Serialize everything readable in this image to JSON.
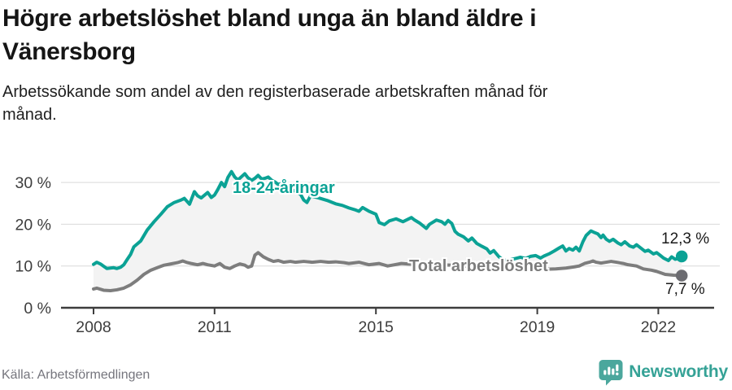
{
  "header": {
    "title_lines": [
      "Högre arbetslöshet bland unga än bland äldre i",
      "Vänersborg"
    ],
    "subtitle_lines": [
      "Arbetssökande som andel av den registerbaserade arbetskraften månad för",
      "månad."
    ]
  },
  "footer": {
    "source": "Källa: Arbetsförmedlingen",
    "brand": "Newsworthy"
  },
  "colors": {
    "accent_teal": "#0ba295",
    "line_gray": "#7d7d7d",
    "dot_gray": "#6c6c71",
    "axis": "#3d3d3d",
    "grid": "#d9d9d9",
    "fill_between": "#f3f3f3",
    "badge_teal": "#4ba79d",
    "brand_text": "#35a296"
  },
  "chart_data": {
    "type": "line",
    "title": "Högre arbetslöshet bland unga än bland äldre i Vänersborg",
    "subtitle": "Arbetssökande som andel av den registerbaserade arbetskraften månad för månad.",
    "unit": "%",
    "legend_position": "inline-labels",
    "x_axis": {
      "ticks": [
        2008,
        2011,
        2015,
        2019,
        2022
      ],
      "range": [
        2008,
        2022.7
      ],
      "label": ""
    },
    "y_axis": {
      "values": [
        0,
        10,
        20,
        30
      ],
      "tick_labels": [
        "0 %",
        "10 %",
        "20 %",
        "30 %"
      ],
      "range": [
        0,
        33
      ],
      "grid": true,
      "label": ""
    },
    "fill_between_series": true,
    "series": [
      {
        "name": "18-24-åringar",
        "color": "#0ba295",
        "dot_color": "#0ba295",
        "end_label": "12,3 %",
        "end_value": 12.3,
        "points": [
          [
            2008.0,
            10.4
          ],
          [
            2008.08,
            10.9
          ],
          [
            2008.17,
            10.5
          ],
          [
            2008.33,
            9.4
          ],
          [
            2008.5,
            9.6
          ],
          [
            2008.58,
            9.4
          ],
          [
            2008.67,
            9.7
          ],
          [
            2008.75,
            10.3
          ],
          [
            2008.83,
            11.5
          ],
          [
            2008.92,
            12.8
          ],
          [
            2009.0,
            14.6
          ],
          [
            2009.17,
            16.0
          ],
          [
            2009.33,
            18.6
          ],
          [
            2009.5,
            20.6
          ],
          [
            2009.67,
            22.4
          ],
          [
            2009.83,
            24.2
          ],
          [
            2010.0,
            25.2
          ],
          [
            2010.17,
            25.8
          ],
          [
            2010.25,
            26.2
          ],
          [
            2010.38,
            24.8
          ],
          [
            2010.5,
            27.8
          ],
          [
            2010.58,
            26.8
          ],
          [
            2010.67,
            26.3
          ],
          [
            2010.83,
            27.6
          ],
          [
            2010.92,
            26.4
          ],
          [
            2011.0,
            27.0
          ],
          [
            2011.08,
            28.3
          ],
          [
            2011.17,
            30.0
          ],
          [
            2011.25,
            29.0
          ],
          [
            2011.33,
            31.2
          ],
          [
            2011.42,
            32.6
          ],
          [
            2011.5,
            31.3
          ],
          [
            2011.58,
            30.6
          ],
          [
            2011.67,
            31.4
          ],
          [
            2011.75,
            32.1
          ],
          [
            2011.83,
            31.1
          ],
          [
            2011.92,
            30.5
          ],
          [
            2012.0,
            31.0
          ],
          [
            2012.08,
            31.7
          ],
          [
            2012.17,
            30.8
          ],
          [
            2012.25,
            31.0
          ],
          [
            2012.33,
            31.3
          ],
          [
            2012.42,
            30.5
          ],
          [
            2012.5,
            30.1
          ],
          [
            2012.58,
            29.5
          ],
          [
            2012.67,
            29.8
          ],
          [
            2012.75,
            29.4
          ],
          [
            2012.83,
            28.8
          ],
          [
            2012.92,
            28.3
          ],
          [
            2013.0,
            27.9
          ],
          [
            2013.13,
            27.2
          ],
          [
            2013.21,
            25.8
          ],
          [
            2013.29,
            25.2
          ],
          [
            2013.38,
            26.8
          ],
          [
            2013.58,
            26.3
          ],
          [
            2013.79,
            25.7
          ],
          [
            2014.0,
            24.9
          ],
          [
            2014.17,
            24.5
          ],
          [
            2014.33,
            23.9
          ],
          [
            2014.5,
            23.4
          ],
          [
            2014.58,
            23.1
          ],
          [
            2014.67,
            24.0
          ],
          [
            2014.83,
            23.1
          ],
          [
            2015.0,
            22.4
          ],
          [
            2015.08,
            20.4
          ],
          [
            2015.21,
            19.9
          ],
          [
            2015.33,
            20.8
          ],
          [
            2015.5,
            21.3
          ],
          [
            2015.67,
            20.6
          ],
          [
            2015.88,
            21.6
          ],
          [
            2015.96,
            21.0
          ],
          [
            2016.08,
            20.3
          ],
          [
            2016.25,
            19.0
          ],
          [
            2016.33,
            20.0
          ],
          [
            2016.5,
            21.0
          ],
          [
            2016.63,
            20.6
          ],
          [
            2016.71,
            20.0
          ],
          [
            2016.79,
            20.9
          ],
          [
            2016.88,
            20.2
          ],
          [
            2016.96,
            18.3
          ],
          [
            2017.04,
            17.6
          ],
          [
            2017.17,
            17.0
          ],
          [
            2017.29,
            16.0
          ],
          [
            2017.38,
            16.7
          ],
          [
            2017.5,
            15.4
          ],
          [
            2017.63,
            14.7
          ],
          [
            2017.75,
            14.1
          ],
          [
            2017.83,
            13.1
          ],
          [
            2017.92,
            13.7
          ],
          [
            2018.04,
            12.3
          ],
          [
            2018.13,
            11.6
          ],
          [
            2018.25,
            11.3
          ],
          [
            2018.42,
            11.7
          ],
          [
            2018.58,
            12.1
          ],
          [
            2018.71,
            11.8
          ],
          [
            2018.83,
            12.3
          ],
          [
            2018.96,
            12.5
          ],
          [
            2019.08,
            11.9
          ],
          [
            2019.17,
            12.4
          ],
          [
            2019.29,
            12.9
          ],
          [
            2019.42,
            13.6
          ],
          [
            2019.54,
            14.3
          ],
          [
            2019.63,
            14.8
          ],
          [
            2019.71,
            13.6
          ],
          [
            2019.79,
            14.2
          ],
          [
            2019.88,
            13.8
          ],
          [
            2019.96,
            14.5
          ],
          [
            2020.04,
            13.6
          ],
          [
            2020.13,
            15.8
          ],
          [
            2020.21,
            17.3
          ],
          [
            2020.33,
            18.4
          ],
          [
            2020.42,
            18.0
          ],
          [
            2020.5,
            17.7
          ],
          [
            2020.58,
            16.8
          ],
          [
            2020.63,
            17.4
          ],
          [
            2020.71,
            16.4
          ],
          [
            2020.79,
            15.9
          ],
          [
            2020.88,
            16.4
          ],
          [
            2021.0,
            15.5
          ],
          [
            2021.08,
            15.1
          ],
          [
            2021.17,
            15.8
          ],
          [
            2021.29,
            14.8
          ],
          [
            2021.38,
            14.5
          ],
          [
            2021.46,
            15.1
          ],
          [
            2021.58,
            14.2
          ],
          [
            2021.67,
            13.5
          ],
          [
            2021.75,
            13.8
          ],
          [
            2021.88,
            12.9
          ],
          [
            2021.96,
            13.2
          ],
          [
            2022.04,
            12.6
          ],
          [
            2022.13,
            11.9
          ],
          [
            2022.25,
            11.3
          ],
          [
            2022.33,
            12.2
          ],
          [
            2022.42,
            11.6
          ],
          [
            2022.5,
            11.8
          ],
          [
            2022.58,
            12.3
          ]
        ]
      },
      {
        "name": "Total arbetslöshet",
        "color": "#7d7d7d",
        "dot_color": "#6c6c71",
        "end_label": "7,7 %",
        "end_value": 7.7,
        "points": [
          [
            2008.0,
            4.5
          ],
          [
            2008.08,
            4.7
          ],
          [
            2008.25,
            4.2
          ],
          [
            2008.42,
            4.1
          ],
          [
            2008.58,
            4.3
          ],
          [
            2008.75,
            4.7
          ],
          [
            2008.92,
            5.5
          ],
          [
            2009.08,
            6.6
          ],
          [
            2009.25,
            8.0
          ],
          [
            2009.42,
            9.0
          ],
          [
            2009.58,
            9.6
          ],
          [
            2009.75,
            10.2
          ],
          [
            2009.92,
            10.5
          ],
          [
            2010.08,
            10.8
          ],
          [
            2010.21,
            11.2
          ],
          [
            2010.33,
            10.8
          ],
          [
            2010.42,
            10.6
          ],
          [
            2010.58,
            10.3
          ],
          [
            2010.71,
            10.6
          ],
          [
            2010.83,
            10.3
          ],
          [
            2011.0,
            10.0
          ],
          [
            2011.13,
            10.6
          ],
          [
            2011.25,
            9.7
          ],
          [
            2011.38,
            9.4
          ],
          [
            2011.5,
            10.0
          ],
          [
            2011.63,
            10.5
          ],
          [
            2011.75,
            10.2
          ],
          [
            2011.83,
            9.7
          ],
          [
            2011.92,
            10.0
          ],
          [
            2012.0,
            12.6
          ],
          [
            2012.08,
            13.2
          ],
          [
            2012.21,
            12.2
          ],
          [
            2012.33,
            11.6
          ],
          [
            2012.46,
            11.1
          ],
          [
            2012.58,
            11.3
          ],
          [
            2012.71,
            10.9
          ],
          [
            2012.88,
            11.1
          ],
          [
            2013.0,
            10.9
          ],
          [
            2013.21,
            11.1
          ],
          [
            2013.42,
            10.9
          ],
          [
            2013.63,
            11.1
          ],
          [
            2013.83,
            10.9
          ],
          [
            2014.0,
            11.0
          ],
          [
            2014.21,
            10.8
          ],
          [
            2014.33,
            10.6
          ],
          [
            2014.58,
            10.9
          ],
          [
            2014.83,
            10.3
          ],
          [
            2015.08,
            10.6
          ],
          [
            2015.29,
            10.0
          ],
          [
            2015.46,
            10.3
          ],
          [
            2015.63,
            10.6
          ],
          [
            2015.92,
            10.4
          ],
          [
            2016.25,
            10.5
          ],
          [
            2016.54,
            10.3
          ],
          [
            2016.83,
            10.2
          ],
          [
            2017.13,
            10.0
          ],
          [
            2017.42,
            9.9
          ],
          [
            2017.71,
            9.7
          ],
          [
            2018.0,
            9.6
          ],
          [
            2018.29,
            9.4
          ],
          [
            2018.58,
            9.3
          ],
          [
            2018.88,
            9.2
          ],
          [
            2019.17,
            9.2
          ],
          [
            2019.46,
            9.3
          ],
          [
            2019.71,
            9.5
          ],
          [
            2019.92,
            9.8
          ],
          [
            2020.04,
            10.0
          ],
          [
            2020.17,
            10.6
          ],
          [
            2020.29,
            10.9
          ],
          [
            2020.38,
            11.2
          ],
          [
            2020.46,
            10.9
          ],
          [
            2020.58,
            10.7
          ],
          [
            2020.71,
            10.9
          ],
          [
            2020.83,
            11.1
          ],
          [
            2020.96,
            10.9
          ],
          [
            2021.13,
            10.6
          ],
          [
            2021.25,
            10.3
          ],
          [
            2021.46,
            10.0
          ],
          [
            2021.63,
            9.3
          ],
          [
            2021.83,
            9.0
          ],
          [
            2021.96,
            8.7
          ],
          [
            2022.17,
            8.0
          ],
          [
            2022.38,
            7.8
          ],
          [
            2022.58,
            7.7
          ]
        ]
      }
    ]
  }
}
